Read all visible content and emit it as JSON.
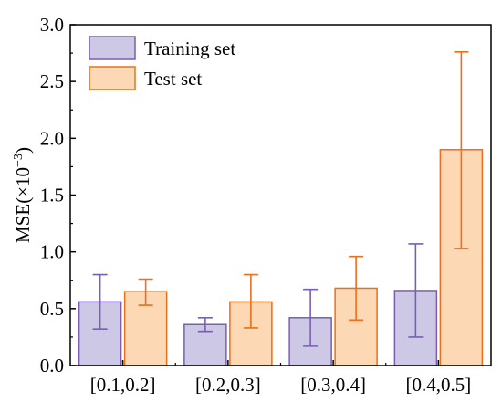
{
  "chart_data": {
    "type": "bar",
    "categories": [
      "[0.1,0.2]",
      "[0.2,0.3]",
      "[0.3,0.4]",
      "[0.4,0.5]"
    ],
    "series": [
      {
        "name": "Training set",
        "values": [
          0.56,
          0.36,
          0.42,
          0.66
        ],
        "error_low": [
          0.32,
          0.3,
          0.17,
          0.25
        ],
        "error_high": [
          0.8,
          0.42,
          0.67,
          1.07
        ],
        "fill": "#cdc8e6",
        "stroke": "#7a5fb0"
      },
      {
        "name": "Test set",
        "values": [
          0.65,
          0.56,
          0.68,
          1.9
        ],
        "error_low": [
          0.53,
          0.33,
          0.4,
          1.03
        ],
        "error_high": [
          0.76,
          0.8,
          0.96,
          2.76
        ],
        "fill": "#fcd8b5",
        "stroke": "#e8701e"
      }
    ],
    "ylabel_main": "MSE(×10",
    "ylabel_sup": "−3",
    "ylabel_tail": ")",
    "ylim": [
      0,
      3.0
    ],
    "yticks": [
      "0.0",
      "0.5",
      "1.0",
      "1.5",
      "2.0",
      "2.5",
      "3.0"
    ],
    "ytick_values": [
      0,
      0.5,
      1.0,
      1.5,
      2.0,
      2.5,
      3.0
    ],
    "legend_position": "top-left",
    "grid": false
  }
}
